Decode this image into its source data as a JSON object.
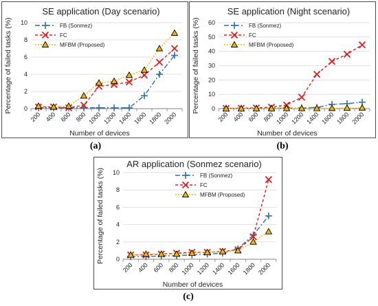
{
  "figure": {
    "captions": [
      "(a)",
      "(b)",
      "(c)"
    ]
  },
  "colors": {
    "fb": "#2e6fa8",
    "fc": "#e31a1c",
    "mfbm": "#f2b705",
    "grid": "#d9d9d9",
    "axis": "#808080"
  },
  "chart_data": [
    {
      "type": "line",
      "title": "SE application (Day scenario)",
      "xlabel": "Number of devices",
      "ylabel": "Percentage of failed tasks (%)",
      "x": [
        200,
        400,
        600,
        800,
        1000,
        1200,
        1400,
        1600,
        1800,
        2000
      ],
      "ylim": [
        0,
        10
      ],
      "yticks": [
        0,
        2,
        4,
        6,
        8,
        10
      ],
      "grid": true,
      "legend_position": "top-left",
      "series": [
        {
          "name": "FB (Sonmez)",
          "values": [
            0.1,
            0.1,
            0.1,
            0.1,
            0.1,
            0.1,
            0.1,
            1.5,
            4.0,
            6.2
          ]
        },
        {
          "name": "FC",
          "values": [
            0.2,
            0.2,
            0.1,
            0.4,
            2.6,
            2.8,
            3.1,
            3.9,
            5.4,
            7.0
          ]
        },
        {
          "name": "MFBM (Proposed)",
          "values": [
            0.3,
            0.2,
            0.3,
            1.5,
            3.0,
            3.2,
            3.9,
            4.5,
            7.0,
            8.8
          ]
        }
      ]
    },
    {
      "type": "line",
      "title": "SE application (Night scenario)",
      "xlabel": "Number of devices",
      "ylabel": "Percentage of failed tasks (%)",
      "x": [
        200,
        400,
        600,
        800,
        1000,
        1200,
        1400,
        1600,
        1800,
        2000
      ],
      "ylim": [
        0,
        60
      ],
      "yticks": [
        0,
        10,
        20,
        30,
        40,
        50,
        60
      ],
      "grid": true,
      "legend_position": "top-left",
      "series": [
        {
          "name": "FB (Sonmez)",
          "values": [
            0.2,
            0.2,
            0.2,
            0.3,
            0.3,
            0.5,
            0.8,
            3.0,
            3.5,
            4.5
          ]
        },
        {
          "name": "FC",
          "values": [
            0.2,
            0.3,
            0.5,
            1.0,
            2.5,
            8.0,
            24.0,
            33.0,
            38.0,
            44.5
          ]
        },
        {
          "name": "MFBM (Proposed)",
          "values": [
            0.1,
            0.1,
            0.1,
            0.1,
            0.2,
            0.2,
            0.2,
            0.3,
            0.4,
            0.6
          ]
        }
      ]
    },
    {
      "type": "line",
      "title": "AR application (Sonmez scenario)",
      "xlabel": "Number of devices",
      "ylabel": "Percentage of failed tasks (%)",
      "x": [
        200,
        400,
        600,
        800,
        1000,
        1200,
        1400,
        1600,
        1800,
        2000
      ],
      "ylim": [
        0,
        10
      ],
      "yticks": [
        0,
        2,
        4,
        6,
        8,
        10
      ],
      "grid": true,
      "legend_position": "top-right",
      "series": [
        {
          "name": "FB (Sonmez)",
          "values": [
            0.3,
            0.3,
            0.4,
            0.4,
            0.5,
            0.6,
            0.7,
            1.2,
            2.8,
            5.0
          ]
        },
        {
          "name": "FC",
          "values": [
            0.5,
            0.5,
            0.6,
            0.7,
            0.8,
            0.8,
            0.9,
            1.1,
            2.6,
            9.2
          ]
        },
        {
          "name": "MFBM (Proposed)",
          "values": [
            0.5,
            0.6,
            0.6,
            0.6,
            0.7,
            0.8,
            0.9,
            1.0,
            2.0,
            3.2
          ]
        }
      ]
    }
  ]
}
